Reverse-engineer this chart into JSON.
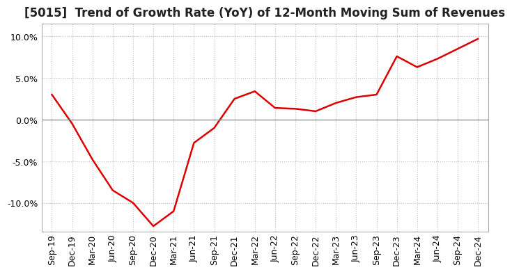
{
  "title": "[5015]  Trend of Growth Rate (YoY) of 12-Month Moving Sum of Revenues",
  "line_color": "#dd0000",
  "line_width": 1.8,
  "background_color": "#ffffff",
  "grid_color": "#bbbbbb",
  "ylim": [
    -0.135,
    0.115
  ],
  "yticks": [
    -0.1,
    -0.05,
    0.0,
    0.05,
    0.1
  ],
  "x_labels": [
    "Sep-19",
    "Dec-19",
    "Mar-20",
    "Jun-20",
    "Sep-20",
    "Dec-20",
    "Mar-21",
    "Jun-21",
    "Sep-21",
    "Dec-21",
    "Mar-22",
    "Jun-22",
    "Sep-22",
    "Dec-22",
    "Mar-23",
    "Jun-23",
    "Sep-23",
    "Dec-23",
    "Mar-24",
    "Jun-24",
    "Sep-24",
    "Dec-24"
  ],
  "data": [
    [
      "Sep-19",
      0.03
    ],
    [
      "Dec-19",
      -0.005
    ],
    [
      "Mar-20",
      -0.048
    ],
    [
      "Jun-20",
      -0.085
    ],
    [
      "Sep-20",
      -0.1
    ],
    [
      "Dec-20",
      -0.128
    ],
    [
      "Mar-21",
      -0.11
    ],
    [
      "Jun-21",
      -0.028
    ],
    [
      "Sep-21",
      -0.01
    ],
    [
      "Dec-21",
      0.025
    ],
    [
      "Mar-22",
      0.034
    ],
    [
      "Jun-22",
      0.014
    ],
    [
      "Sep-22",
      0.013
    ],
    [
      "Dec-22",
      0.01
    ],
    [
      "Mar-23",
      0.02
    ],
    [
      "Jun-23",
      0.027
    ],
    [
      "Sep-23",
      0.03
    ],
    [
      "Dec-23",
      0.076
    ],
    [
      "Mar-24",
      0.063
    ],
    [
      "Jun-24",
      0.073
    ],
    [
      "Sep-24",
      0.085
    ],
    [
      "Dec-24",
      0.097
    ]
  ],
  "title_fontsize": 12,
  "tick_fontsize": 9,
  "ytick_fontsize": 9
}
